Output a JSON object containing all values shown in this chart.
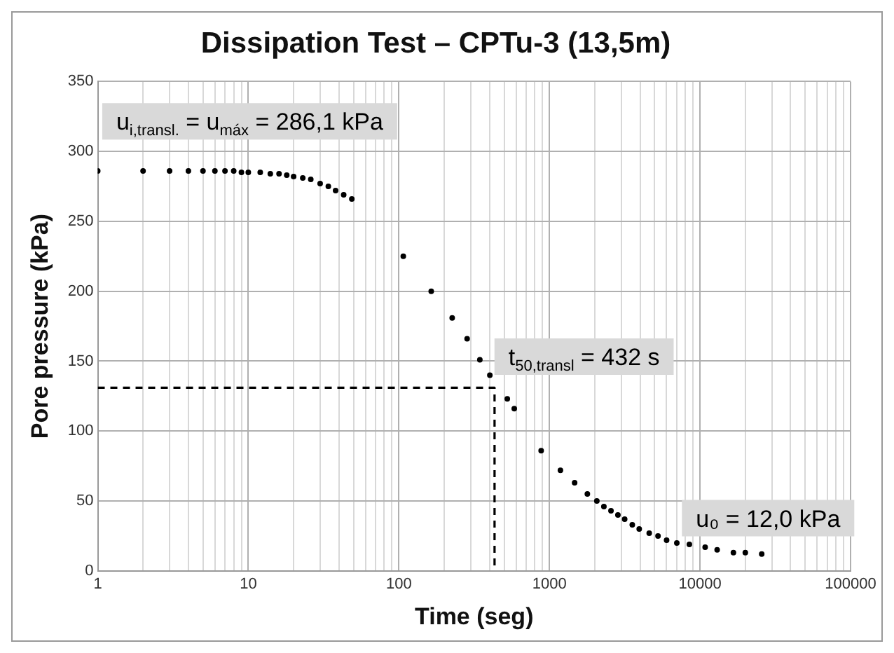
{
  "chart_data": {
    "type": "scatter",
    "title": "Dissipation Test – CPTu-3 (13,5m)",
    "xlabel": "Time (seg)",
    "ylabel": "Pore pressure (kPa)",
    "annotations": [
      "u$_{i,transl.}$ = u$_{máx}$ = 286,1 kPa",
      "t$_{50,transl}$ = 432 s",
      "u₀ = 12,0 kPa"
    ],
    "series": [
      {
        "color": "#000000",
        "marker": "circle",
        "x": [
          1,
          2,
          3,
          4,
          5,
          6,
          7,
          8,
          9,
          10,
          12,
          14,
          16,
          18,
          20,
          23,
          26,
          30,
          34,
          38,
          43,
          48.7,
          107,
          164,
          226,
          284,
          345,
          402,
          525,
          584,
          881,
          1183,
          1470,
          1786,
          2065,
          2300,
          2563,
          2850,
          3160,
          3550,
          3947,
          4600,
          5262,
          6000,
          7015,
          8500,
          10820,
          13000,
          16670,
          20000,
          25700
        ],
        "values": [
          286,
          286,
          286,
          286,
          286,
          286,
          286,
          286,
          285,
          285,
          285,
          284,
          284,
          283,
          282,
          281,
          280,
          277,
          275,
          272,
          269,
          266,
          225,
          200,
          181,
          166,
          151,
          140,
          123,
          116,
          86,
          72,
          63,
          55,
          50,
          46,
          43,
          40,
          37,
          33,
          30,
          27,
          25,
          22,
          20,
          19,
          17,
          15,
          13,
          13,
          12
        ]
      },
      {
        "type": "line",
        "color": "#000000",
        "marker": "none",
        "line_style": "dashed",
        "x": [
          1,
          432,
          432
        ],
        "values": [
          131,
          131,
          0
        ]
      }
    ],
    "log": "x",
    "grid": true,
    "xlim": [
      1,
      100000
    ],
    "xticks": [
      1,
      {
        "value": 2,
        "label": null
      },
      {
        "value": 3,
        "label": null
      },
      {
        "value": 4,
        "label": null
      },
      {
        "value": 5,
        "label": null
      },
      {
        "value": 6,
        "label": null
      },
      {
        "value": 7,
        "label": null
      },
      {
        "value": 8,
        "label": null
      },
      {
        "value": 9,
        "label": null
      },
      10,
      {
        "value": 20,
        "label": null
      },
      {
        "value": 30,
        "label": null
      },
      {
        "value": 40,
        "label": null
      },
      {
        "value": 50,
        "label": null
      },
      {
        "value": 60,
        "label": null
      },
      {
        "value": 70,
        "label": null
      },
      {
        "value": 80,
        "label": null
      },
      {
        "value": 90,
        "label": null
      },
      100,
      {
        "value": 200,
        "label": null
      },
      {
        "value": 300,
        "label": null
      },
      {
        "value": 400,
        "label": null
      },
      {
        "value": 500,
        "label": null
      },
      {
        "value": 600,
        "label": null
      },
      {
        "value": 700,
        "label": null
      },
      {
        "value": 800,
        "label": null
      },
      {
        "value": 900,
        "label": null
      },
      1000,
      {
        "value": 2000,
        "label": null
      },
      {
        "value": 3000,
        "label": null
      },
      {
        "value": 4000,
        "label": null
      },
      {
        "value": 5000,
        "label": null
      },
      {
        "value": 6000,
        "label": null
      },
      {
        "value": 7000,
        "label": null
      },
      {
        "value": 8000,
        "label": null
      },
      {
        "value": 9000,
        "label": null
      },
      10000,
      {
        "value": 20000,
        "label": null
      },
      {
        "value": 30000,
        "label": null
      },
      {
        "value": 40000,
        "label": null
      },
      {
        "value": 50000,
        "label": null
      },
      {
        "value": 60000,
        "label": null
      },
      {
        "value": 70000,
        "label": null
      },
      {
        "value": 80000,
        "label": null
      },
      {
        "value": 90000,
        "label": null
      },
      100000
    ],
    "ylim": [
      0,
      350
    ],
    "yticks": [
      0,
      50,
      100,
      150,
      200,
      250,
      300,
      350
    ]
  }
}
